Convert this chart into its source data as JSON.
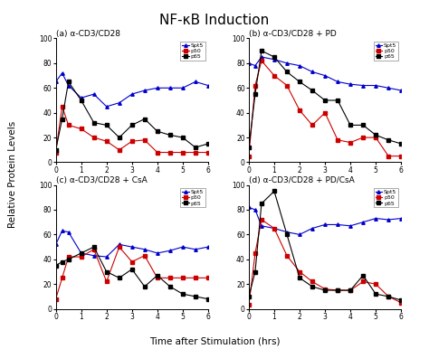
{
  "title": "NF-κB Induction",
  "xlabel": "Time after Stimulation (hrs)",
  "ylabel": "Relative Protein Levels",
  "panels": [
    {
      "label": "(a) α-CD3/CD28",
      "x": [
        0,
        0.25,
        0.5,
        1,
        1.5,
        2,
        2.5,
        3,
        3.5,
        4,
        4.5,
        5,
        5.5,
        6
      ],
      "p65": [
        10,
        35,
        65,
        50,
        32,
        30,
        20,
        30,
        35,
        25,
        22,
        20,
        12,
        15
      ],
      "p50": [
        8,
        45,
        30,
        27,
        20,
        17,
        10,
        17,
        18,
        8,
        8,
        8,
        8,
        8
      ],
      "Spt5": [
        65,
        72,
        62,
        52,
        55,
        45,
        48,
        55,
        58,
        60,
        60,
        60,
        65,
        62
      ]
    },
    {
      "label": "(b) α-CD3/CD28 + PD",
      "x": [
        0,
        0.25,
        0.5,
        1,
        1.5,
        2,
        2.5,
        3,
        3.5,
        4,
        4.5,
        5,
        5.5,
        6
      ],
      "p65": [
        12,
        55,
        90,
        85,
        73,
        65,
        58,
        50,
        50,
        30,
        30,
        22,
        18,
        15
      ],
      "p50": [
        5,
        62,
        82,
        70,
        62,
        42,
        30,
        40,
        18,
        16,
        20,
        20,
        5,
        5
      ],
      "Spt5": [
        80,
        78,
        85,
        83,
        80,
        78,
        73,
        70,
        65,
        63,
        62,
        62,
        60,
        58
      ]
    },
    {
      "label": "(c) α-CD3/CD28 + CsA",
      "x": [
        0,
        0.25,
        0.5,
        1,
        1.5,
        2,
        2.5,
        3,
        3.5,
        4,
        4.5,
        5,
        5.5,
        6
      ],
      "p65": [
        35,
        38,
        40,
        45,
        50,
        30,
        25,
        32,
        18,
        27,
        18,
        12,
        10,
        8
      ],
      "p50": [
        8,
        25,
        42,
        42,
        48,
        22,
        50,
        38,
        43,
        25,
        25,
        25,
        25,
        25
      ],
      "Spt5": [
        52,
        63,
        62,
        45,
        43,
        42,
        52,
        50,
        48,
        45,
        47,
        50,
        48,
        50
      ]
    },
    {
      "label": "(d) α-CD3/CD28 + PD/CsA",
      "x": [
        0,
        0.25,
        0.5,
        1,
        1.5,
        2,
        2.5,
        3,
        3.5,
        4,
        4.5,
        5,
        5.5,
        6
      ],
      "p65": [
        10,
        30,
        85,
        95,
        60,
        25,
        18,
        15,
        15,
        15,
        27,
        12,
        10,
        7
      ],
      "p50": [
        3,
        45,
        72,
        65,
        43,
        30,
        22,
        16,
        15,
        15,
        22,
        20,
        10,
        5
      ],
      "Spt5": [
        82,
        80,
        67,
        65,
        62,
        60,
        65,
        68,
        68,
        67,
        70,
        73,
        72,
        73
      ]
    }
  ],
  "colors": {
    "p65": "#000000",
    "p50": "#cc0000",
    "Spt5": "#0000cc"
  },
  "xticks": [
    0,
    1,
    2,
    3,
    4,
    5,
    6
  ],
  "yticks": [
    0,
    20,
    40,
    60,
    80,
    100
  ],
  "ylim": [
    0,
    100
  ],
  "xlim": [
    0,
    6
  ]
}
